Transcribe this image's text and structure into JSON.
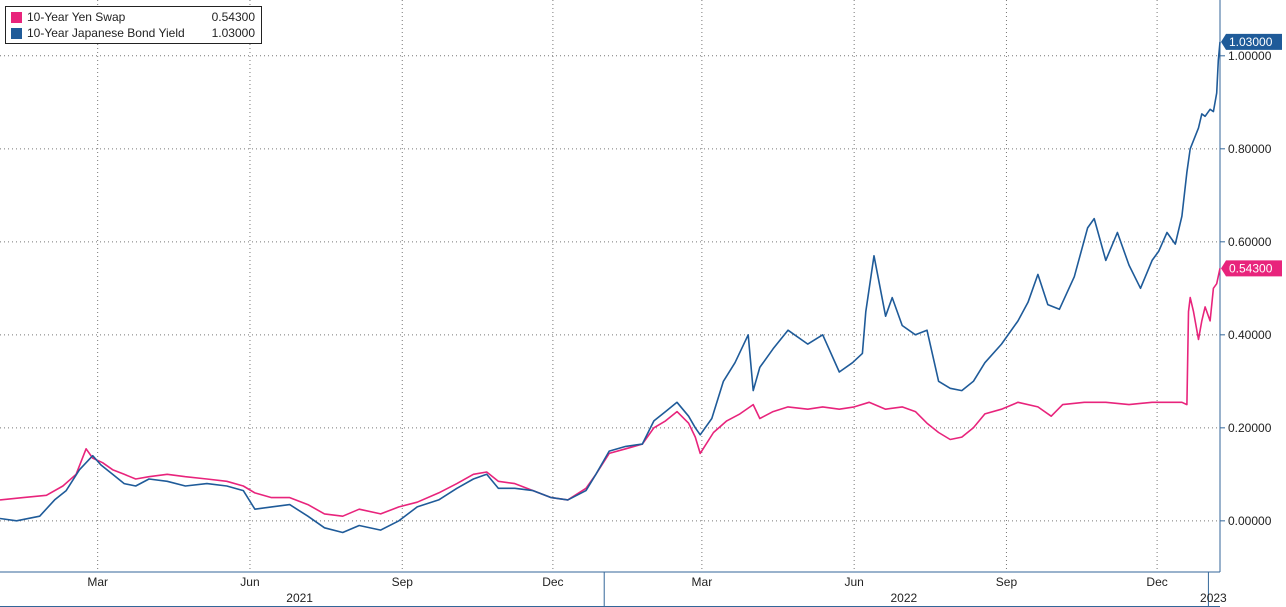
{
  "colors": {
    "swap": "#e8247c",
    "bond": "#1f5b99",
    "grid": "#777777",
    "axis": "#336699",
    "text": "#222222"
  },
  "legend": [
    {
      "name": "10-Year Yen Swap",
      "value": "0.54300",
      "color": "#e8247c"
    },
    {
      "name": "10-Year Japanese Bond Yield",
      "value": "1.03000",
      "color": "#1f5b99"
    }
  ],
  "chart_data": {
    "type": "line",
    "title": "",
    "xlabel": "",
    "ylabel": "",
    "ylim": [
      -0.11,
      1.12
    ],
    "xlim": [
      "2021-01-01",
      "2023-01-08"
    ],
    "y_ticks": [
      {
        "value": 0.0,
        "label": "0.00000"
      },
      {
        "value": 0.2,
        "label": "0.20000"
      },
      {
        "value": 0.4,
        "label": "0.40000"
      },
      {
        "value": 0.6,
        "label": "0.60000"
      },
      {
        "value": 0.8,
        "label": "0.80000"
      },
      {
        "value": 1.0,
        "label": "1.00000"
      }
    ],
    "x_ticks": [
      {
        "date": "2021-03-01",
        "label": "Mar"
      },
      {
        "date": "2021-06-01",
        "label": "Jun"
      },
      {
        "date": "2021-09-01",
        "label": "Sep"
      },
      {
        "date": "2021-12-01",
        "label": "Dec"
      },
      {
        "date": "2022-03-01",
        "label": "Mar"
      },
      {
        "date": "2022-06-01",
        "label": "Jun"
      },
      {
        "date": "2022-09-01",
        "label": "Sep"
      },
      {
        "date": "2022-12-01",
        "label": "Dec"
      }
    ],
    "year_labels": [
      {
        "date": "2021-07-01",
        "label": "2021"
      },
      {
        "date": "2022-07-01",
        "label": "2022"
      },
      {
        "date": "2023-01-04",
        "label": "2023"
      }
    ],
    "year_boundaries": [
      "2022-01-01",
      "2023-01-01"
    ],
    "grid": true,
    "legend_position": "top-left",
    "series": [
      {
        "name": "10-Year Yen Swap",
        "color": "#e8247c",
        "last_label": "0.54300",
        "points": [
          [
            "2021-01-01",
            0.045
          ],
          [
            "2021-01-15",
            0.05
          ],
          [
            "2021-01-29",
            0.055
          ],
          [
            "2021-02-08",
            0.075
          ],
          [
            "2021-02-16",
            0.1
          ],
          [
            "2021-02-22",
            0.155
          ],
          [
            "2021-02-26",
            0.135
          ],
          [
            "2021-03-04",
            0.125
          ],
          [
            "2021-03-10",
            0.11
          ],
          [
            "2021-03-17",
            0.1
          ],
          [
            "2021-03-24",
            0.09
          ],
          [
            "2021-04-01",
            0.095
          ],
          [
            "2021-04-12",
            0.1
          ],
          [
            "2021-04-23",
            0.095
          ],
          [
            "2021-05-06",
            0.09
          ],
          [
            "2021-05-18",
            0.085
          ],
          [
            "2021-05-28",
            0.075
          ],
          [
            "2021-06-04",
            0.06
          ],
          [
            "2021-06-14",
            0.05
          ],
          [
            "2021-06-25",
            0.05
          ],
          [
            "2021-07-06",
            0.035
          ],
          [
            "2021-07-16",
            0.015
          ],
          [
            "2021-07-27",
            0.01
          ],
          [
            "2021-08-06",
            0.025
          ],
          [
            "2021-08-19",
            0.015
          ],
          [
            "2021-08-30",
            0.03
          ],
          [
            "2021-09-10",
            0.04
          ],
          [
            "2021-09-23",
            0.06
          ],
          [
            "2021-10-04",
            0.08
          ],
          [
            "2021-10-14",
            0.1
          ],
          [
            "2021-10-22",
            0.105
          ],
          [
            "2021-10-29",
            0.085
          ],
          [
            "2021-11-08",
            0.08
          ],
          [
            "2021-11-19",
            0.065
          ],
          [
            "2021-11-30",
            0.05
          ],
          [
            "2021-12-10",
            0.045
          ],
          [
            "2021-12-21",
            0.07
          ],
          [
            "2021-12-27",
            0.1
          ],
          [
            "2022-01-04",
            0.145
          ],
          [
            "2022-01-14",
            0.155
          ],
          [
            "2022-01-24",
            0.165
          ],
          [
            "2022-01-31",
            0.2
          ],
          [
            "2022-02-07",
            0.215
          ],
          [
            "2022-02-14",
            0.235
          ],
          [
            "2022-02-21",
            0.21
          ],
          [
            "2022-02-25",
            0.18
          ],
          [
            "2022-02-28",
            0.145
          ],
          [
            "2022-03-08",
            0.19
          ],
          [
            "2022-03-16",
            0.215
          ],
          [
            "2022-03-24",
            0.23
          ],
          [
            "2022-04-01",
            0.25
          ],
          [
            "2022-04-05",
            0.22
          ],
          [
            "2022-04-13",
            0.235
          ],
          [
            "2022-04-22",
            0.245
          ],
          [
            "2022-05-04",
            0.24
          ],
          [
            "2022-05-13",
            0.245
          ],
          [
            "2022-05-23",
            0.24
          ],
          [
            "2022-06-01",
            0.245
          ],
          [
            "2022-06-10",
            0.255
          ],
          [
            "2022-06-20",
            0.24
          ],
          [
            "2022-06-30",
            0.245
          ],
          [
            "2022-07-08",
            0.235
          ],
          [
            "2022-07-15",
            0.21
          ],
          [
            "2022-07-22",
            0.19
          ],
          [
            "2022-07-29",
            0.175
          ],
          [
            "2022-08-05",
            0.18
          ],
          [
            "2022-08-12",
            0.2
          ],
          [
            "2022-08-19",
            0.23
          ],
          [
            "2022-08-29",
            0.24
          ],
          [
            "2022-09-08",
            0.255
          ],
          [
            "2022-09-20",
            0.245
          ],
          [
            "2022-09-28",
            0.225
          ],
          [
            "2022-10-05",
            0.25
          ],
          [
            "2022-10-18",
            0.255
          ],
          [
            "2022-10-31",
            0.255
          ],
          [
            "2022-11-14",
            0.25
          ],
          [
            "2022-11-28",
            0.255
          ],
          [
            "2022-12-09",
            0.255
          ],
          [
            "2022-12-16",
            0.255
          ],
          [
            "2022-12-19",
            0.25
          ],
          [
            "2022-12-20",
            0.45
          ],
          [
            "2022-12-21",
            0.48
          ],
          [
            "2022-12-23",
            0.45
          ],
          [
            "2022-12-26",
            0.39
          ],
          [
            "2022-12-28",
            0.43
          ],
          [
            "2022-12-30",
            0.46
          ],
          [
            "2023-01-02",
            0.43
          ],
          [
            "2023-01-04",
            0.5
          ],
          [
            "2023-01-06",
            0.51
          ],
          [
            "2023-01-08",
            0.543
          ]
        ]
      },
      {
        "name": "10-Year Japanese Bond Yield",
        "color": "#1f5b99",
        "last_label": "1.03000",
        "points": [
          [
            "2021-01-01",
            0.005
          ],
          [
            "2021-01-11",
            0.0
          ],
          [
            "2021-01-25",
            0.01
          ],
          [
            "2021-02-03",
            0.045
          ],
          [
            "2021-02-10",
            0.065
          ],
          [
            "2021-02-18",
            0.11
          ],
          [
            "2021-02-22",
            0.125
          ],
          [
            "2021-02-26",
            0.14
          ],
          [
            "2021-03-03",
            0.12
          ],
          [
            "2021-03-10",
            0.1
          ],
          [
            "2021-03-17",
            0.08
          ],
          [
            "2021-03-24",
            0.075
          ],
          [
            "2021-04-01",
            0.09
          ],
          [
            "2021-04-12",
            0.085
          ],
          [
            "2021-04-23",
            0.075
          ],
          [
            "2021-05-06",
            0.08
          ],
          [
            "2021-05-18",
            0.075
          ],
          [
            "2021-05-28",
            0.065
          ],
          [
            "2021-06-04",
            0.025
          ],
          [
            "2021-06-14",
            0.03
          ],
          [
            "2021-06-25",
            0.035
          ],
          [
            "2021-07-06",
            0.01
          ],
          [
            "2021-07-16",
            -0.015
          ],
          [
            "2021-07-27",
            -0.025
          ],
          [
            "2021-08-06",
            -0.01
          ],
          [
            "2021-08-19",
            -0.02
          ],
          [
            "2021-08-30",
            0.0
          ],
          [
            "2021-09-10",
            0.03
          ],
          [
            "2021-09-23",
            0.045
          ],
          [
            "2021-10-04",
            0.07
          ],
          [
            "2021-10-14",
            0.09
          ],
          [
            "2021-10-22",
            0.1
          ],
          [
            "2021-10-29",
            0.07
          ],
          [
            "2021-11-08",
            0.07
          ],
          [
            "2021-11-19",
            0.065
          ],
          [
            "2021-11-30",
            0.05
          ],
          [
            "2021-12-10",
            0.045
          ],
          [
            "2021-12-21",
            0.065
          ],
          [
            "2021-12-27",
            0.1
          ],
          [
            "2022-01-04",
            0.15
          ],
          [
            "2022-01-14",
            0.16
          ],
          [
            "2022-01-24",
            0.165
          ],
          [
            "2022-01-31",
            0.215
          ],
          [
            "2022-02-07",
            0.235
          ],
          [
            "2022-02-14",
            0.255
          ],
          [
            "2022-02-21",
            0.225
          ],
          [
            "2022-02-25",
            0.2
          ],
          [
            "2022-02-28",
            0.185
          ],
          [
            "2022-03-07",
            0.22
          ],
          [
            "2022-03-14",
            0.3
          ],
          [
            "2022-03-21",
            0.34
          ],
          [
            "2022-03-29",
            0.4
          ],
          [
            "2022-04-01",
            0.28
          ],
          [
            "2022-04-05",
            0.33
          ],
          [
            "2022-04-13",
            0.37
          ],
          [
            "2022-04-22",
            0.41
          ],
          [
            "2022-05-04",
            0.38
          ],
          [
            "2022-05-13",
            0.4
          ],
          [
            "2022-05-23",
            0.32
          ],
          [
            "2022-05-31",
            0.34
          ],
          [
            "2022-06-06",
            0.36
          ],
          [
            "2022-06-08",
            0.45
          ],
          [
            "2022-06-13",
            0.57
          ],
          [
            "2022-06-20",
            0.44
          ],
          [
            "2022-06-24",
            0.48
          ],
          [
            "2022-06-30",
            0.42
          ],
          [
            "2022-07-08",
            0.4
          ],
          [
            "2022-07-15",
            0.41
          ],
          [
            "2022-07-22",
            0.3
          ],
          [
            "2022-07-29",
            0.285
          ],
          [
            "2022-08-05",
            0.28
          ],
          [
            "2022-08-12",
            0.3
          ],
          [
            "2022-08-19",
            0.34
          ],
          [
            "2022-08-29",
            0.38
          ],
          [
            "2022-09-08",
            0.43
          ],
          [
            "2022-09-14",
            0.47
          ],
          [
            "2022-09-20",
            0.53
          ],
          [
            "2022-09-26",
            0.465
          ],
          [
            "2022-10-03",
            0.455
          ],
          [
            "2022-10-12",
            0.525
          ],
          [
            "2022-10-20",
            0.63
          ],
          [
            "2022-10-24",
            0.65
          ],
          [
            "2022-10-31",
            0.56
          ],
          [
            "2022-11-07",
            0.62
          ],
          [
            "2022-11-14",
            0.55
          ],
          [
            "2022-11-21",
            0.5
          ],
          [
            "2022-11-28",
            0.56
          ],
          [
            "2022-12-02",
            0.58
          ],
          [
            "2022-12-07",
            0.62
          ],
          [
            "2022-12-12",
            0.595
          ],
          [
            "2022-12-16",
            0.655
          ],
          [
            "2022-12-19",
            0.75
          ],
          [
            "2022-12-21",
            0.8
          ],
          [
            "2022-12-26",
            0.845
          ],
          [
            "2022-12-28",
            0.875
          ],
          [
            "2022-12-30",
            0.87
          ],
          [
            "2023-01-02",
            0.885
          ],
          [
            "2023-01-04",
            0.88
          ],
          [
            "2023-01-06",
            0.92
          ],
          [
            "2023-01-07",
            0.99
          ],
          [
            "2023-01-08",
            1.03
          ]
        ]
      }
    ]
  }
}
